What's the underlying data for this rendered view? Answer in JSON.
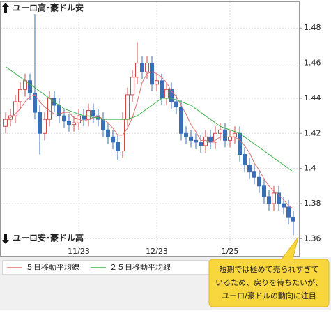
{
  "chart_data": {
    "type": "candlestick",
    "annotations": {
      "top": "ユーロ高･豪ドル安",
      "bottom": "ユーロ安･豪ドル高",
      "callout": [
        "短期では極めて売られすぎて",
        "いるため、戻りを待ちたいが、",
        "ユーロ/豪ドルの動向に注目"
      ]
    },
    "categories": [
      null,
      null,
      null,
      null,
      null,
      null,
      null,
      null,
      null,
      null,
      null,
      null,
      null,
      null,
      null,
      "11/23",
      null,
      null,
      null,
      null,
      null,
      null,
      null,
      null,
      null,
      null,
      null,
      null,
      null,
      null,
      null,
      "12/23",
      null,
      null,
      null,
      null,
      null,
      null,
      null,
      null,
      null,
      null,
      null,
      null,
      null,
      null,
      "1/25",
      null,
      null,
      null,
      null,
      null,
      null,
      null,
      null,
      null,
      null,
      null,
      null,
      null
    ],
    "open": [
      1.424,
      1.428,
      1.43,
      1.438,
      1.445,
      1.45,
      1.443,
      1.432,
      1.42,
      1.428,
      1.44,
      1.436,
      1.43,
      1.427,
      1.425,
      1.426,
      1.43,
      1.428,
      1.433,
      1.43,
      1.428,
      1.422,
      1.418,
      1.415,
      1.41,
      1.428,
      1.442,
      1.452,
      1.46,
      1.455,
      1.46,
      1.448,
      1.45,
      1.44,
      1.445,
      1.438,
      1.435,
      1.42,
      1.418,
      1.416,
      1.415,
      1.413,
      1.418,
      1.415,
      1.42,
      1.422,
      1.416,
      1.418,
      1.42,
      1.408,
      1.402,
      1.398,
      1.395,
      1.39,
      1.384,
      1.38,
      1.386,
      1.38,
      1.378,
      1.372
    ],
    "high": [
      1.432,
      1.434,
      1.442,
      1.449,
      1.454,
      1.454,
      1.488,
      1.436,
      1.432,
      1.444,
      1.444,
      1.44,
      1.434,
      1.431,
      1.43,
      1.434,
      1.434,
      1.437,
      1.437,
      1.434,
      1.432,
      1.426,
      1.422,
      1.419,
      1.432,
      1.446,
      1.456,
      1.472,
      1.464,
      1.464,
      1.464,
      1.454,
      1.454,
      1.449,
      1.449,
      1.442,
      1.439,
      1.424,
      1.422,
      1.42,
      1.419,
      1.422,
      1.422,
      1.424,
      1.426,
      1.426,
      1.422,
      1.424,
      1.424,
      1.412,
      1.406,
      1.402,
      1.399,
      1.394,
      1.388,
      1.39,
      1.39,
      1.384,
      1.382,
      1.376
    ],
    "low": [
      1.42,
      1.424,
      1.426,
      1.434,
      1.441,
      1.439,
      1.428,
      1.408,
      1.416,
      1.424,
      1.432,
      1.426,
      1.423,
      1.421,
      1.421,
      1.422,
      1.424,
      1.424,
      1.426,
      1.424,
      1.418,
      1.414,
      1.411,
      1.405,
      1.406,
      1.424,
      1.438,
      1.448,
      1.451,
      1.451,
      1.444,
      1.444,
      1.436,
      1.436,
      1.434,
      1.431,
      1.416,
      1.414,
      1.412,
      1.411,
      1.409,
      1.409,
      1.411,
      1.411,
      1.416,
      1.412,
      1.412,
      1.414,
      1.404,
      1.398,
      1.394,
      1.391,
      1.386,
      1.38,
      1.376,
      1.376,
      1.376,
      1.374,
      1.368,
      1.362
    ],
    "close": [
      1.428,
      1.43,
      1.438,
      1.445,
      1.45,
      1.443,
      1.432,
      1.42,
      1.428,
      1.44,
      1.436,
      1.43,
      1.427,
      1.425,
      1.426,
      1.43,
      1.428,
      1.433,
      1.43,
      1.428,
      1.422,
      1.418,
      1.415,
      1.41,
      1.428,
      1.442,
      1.452,
      1.46,
      1.455,
      1.46,
      1.448,
      1.45,
      1.44,
      1.445,
      1.438,
      1.435,
      1.42,
      1.418,
      1.416,
      1.415,
      1.413,
      1.418,
      1.415,
      1.42,
      1.422,
      1.416,
      1.418,
      1.42,
      1.408,
      1.402,
      1.398,
      1.395,
      1.39,
      1.384,
      1.38,
      1.386,
      1.38,
      1.378,
      1.372,
      1.37
    ],
    "up_color": "#d04848",
    "down_color": "#3a6fb5",
    "series": [
      {
        "name": "５日移動平均線",
        "color": "#e07070",
        "values": [
          1.428,
          1.429,
          1.431,
          1.434,
          1.438,
          1.441,
          1.442,
          1.438,
          1.435,
          1.433,
          1.431,
          1.431,
          1.432,
          1.432,
          1.429,
          1.428,
          1.427,
          1.428,
          1.429,
          1.43,
          1.428,
          1.426,
          1.423,
          1.419,
          1.419,
          1.423,
          1.429,
          1.438,
          1.449,
          1.454,
          1.455,
          1.454,
          1.452,
          1.449,
          1.444,
          1.441,
          1.436,
          1.431,
          1.425,
          1.421,
          1.416,
          1.416,
          1.415,
          1.416,
          1.418,
          1.418,
          1.418,
          1.418,
          1.416,
          1.413,
          1.409,
          1.403,
          1.399,
          1.394,
          1.39,
          1.387,
          1.385,
          1.382,
          1.379,
          1.377
        ]
      },
      {
        "name": "２５日移動平均線",
        "color": "#3cb44b",
        "values": [
          1.458,
          1.456,
          1.454,
          1.452,
          1.45,
          1.448,
          1.446,
          1.444,
          1.442,
          1.44,
          1.438,
          1.436,
          1.434,
          1.433,
          1.432,
          1.431,
          1.43,
          1.43,
          1.429,
          1.429,
          1.428,
          1.428,
          1.428,
          1.428,
          1.428,
          1.428,
          1.429,
          1.43,
          1.432,
          1.434,
          1.436,
          1.438,
          1.44,
          1.44,
          1.44,
          1.439,
          1.438,
          1.437,
          1.436,
          1.434,
          1.432,
          1.43,
          1.428,
          1.426,
          1.424,
          1.423,
          1.422,
          1.421,
          1.42,
          1.418,
          1.416,
          1.414,
          1.412,
          1.41,
          1.408,
          1.406,
          1.404,
          1.402,
          1.4,
          1.398
        ]
      }
    ],
    "ylim": [
      1.351,
      1.494
    ],
    "yticks": [
      1.36,
      1.38,
      1.4,
      1.42,
      1.44,
      1.46,
      1.48
    ],
    "grid": true
  }
}
